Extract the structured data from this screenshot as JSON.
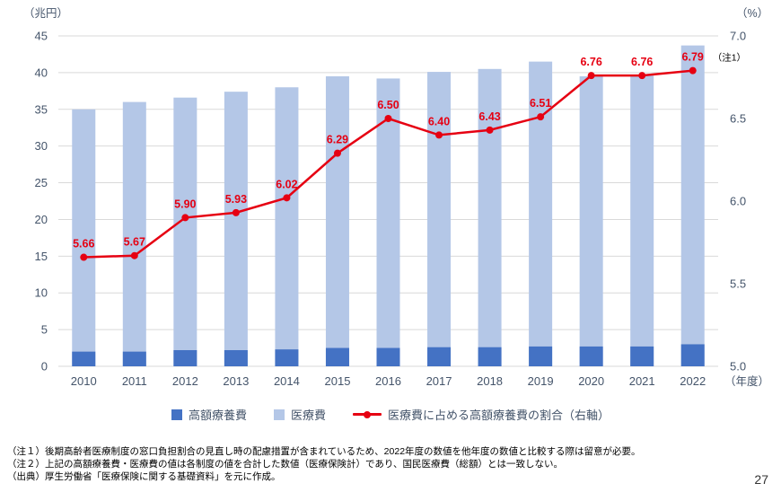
{
  "page": {
    "number": "27"
  },
  "axes": {
    "left_unit": "（兆円）",
    "right_unit": "（%）",
    "x_unit": "（年度）"
  },
  "legend": {
    "items": [
      {
        "label": "高額療養費",
        "type": "square",
        "color": "#4472C4"
      },
      {
        "label": "医療費",
        "type": "square",
        "color": "#B4C7E7"
      },
      {
        "label": "医療費に占める高額療養費の割合（右軸）",
        "type": "line",
        "color": "#E60012"
      }
    ]
  },
  "footnotes": [
    "（注１）後期高齢者医療制度の窓口負担割合の見直し時の配慮措置が含まれているため、2022年度の数値を他年度の数値と比較する際は留意が必要。",
    "（注２）上記の高額療養費・医療費の値は各制度の値を合計した数値（医療保険計）であり、国民医療費（総額）とは一致しない。",
    "（出典）厚生労働省「医療保険に関する基礎資料」を元に作成。"
  ],
  "chart_data": {
    "type": "bar",
    "subtype": "bar+line-combo",
    "categories": [
      "2010",
      "2011",
      "2012",
      "2013",
      "2014",
      "2015",
      "2016",
      "2017",
      "2018",
      "2019",
      "2020",
      "2021",
      "2022"
    ],
    "series": [
      {
        "name": "高額療養費",
        "type": "bar",
        "axis": "left",
        "color": "#4472C4",
        "values": [
          2.0,
          2.0,
          2.2,
          2.2,
          2.3,
          2.5,
          2.5,
          2.6,
          2.6,
          2.7,
          2.7,
          2.7,
          3.0
        ]
      },
      {
        "name": "医療費",
        "type": "bar",
        "axis": "left",
        "color": "#B4C7E7",
        "values": [
          35.0,
          36.0,
          36.6,
          37.4,
          38.0,
          39.5,
          39.2,
          40.1,
          40.5,
          41.5,
          39.5,
          39.6,
          43.7
        ]
      },
      {
        "name": "医療費に占める高額療養費の割合（右軸）",
        "type": "line",
        "axis": "right",
        "color": "#E60012",
        "values": [
          5.66,
          5.67,
          5.9,
          5.93,
          6.02,
          6.29,
          6.5,
          6.4,
          6.43,
          6.51,
          6.76,
          6.76,
          6.79
        ]
      }
    ],
    "left_axis": {
      "min": 0,
      "max": 45,
      "step": 5,
      "unit": "兆円"
    },
    "right_axis": {
      "min": 5.0,
      "max": 7.0,
      "step": 0.5,
      "unit": "%"
    },
    "line_label_note": {
      "text": "（注1）",
      "at_index": 12
    },
    "grid": true,
    "legend_position": "bottom",
    "text_color": "#44546A",
    "grid_color": "#D9D9D9"
  }
}
